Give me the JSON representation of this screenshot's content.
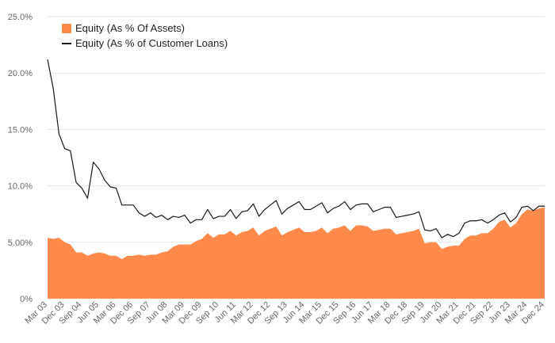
{
  "chart_data": {
    "type": "area+line",
    "title": "",
    "xlabel": "",
    "ylabel": "",
    "ylim": [
      0,
      25
    ],
    "yticks": [
      0,
      5,
      10,
      15,
      20,
      25
    ],
    "ytick_labels": [
      "0%",
      "5.00%",
      "10.0%",
      "15.0%",
      "20.0%",
      "25.0%"
    ],
    "x_tick_labels": [
      "Mar 03",
      "Dec 03",
      "Sep 04",
      "Jun 05",
      "Mar 06",
      "Dec 06",
      "Sep 07",
      "Jun 08",
      "Mar 09",
      "Dec 09",
      "Sep 10",
      "Jun 11",
      "Mar 12",
      "Dec 12",
      "Sep 13",
      "Jun 14",
      "Mar 15",
      "Dec 15",
      "Sep 16",
      "Jun 17",
      "Mar 18",
      "Dec 18",
      "Sep 19",
      "Jun 20",
      "Mar 21",
      "Dec 21",
      "Sep 22",
      "Jun 23",
      "Mar 24",
      "Dec 24"
    ],
    "grid": true,
    "legend_position": "top-left",
    "colors": {
      "area": "#FF8A4C",
      "line": "#1a1a1a"
    },
    "series": [
      {
        "name": "Equity (As % Of Assets)",
        "kind": "area",
        "values": [
          5.4,
          5.3,
          5.4,
          5.0,
          4.8,
          4.1,
          4.1,
          3.8,
          4.0,
          4.1,
          4.0,
          3.8,
          3.8,
          3.5,
          3.8,
          3.8,
          3.9,
          3.8,
          3.9,
          3.9,
          4.1,
          4.2,
          4.6,
          4.8,
          4.8,
          4.8,
          5.1,
          5.3,
          5.8,
          5.4,
          5.7,
          5.7,
          6.0,
          5.6,
          5.9,
          6.0,
          6.3,
          5.6,
          6.0,
          6.2,
          6.4,
          5.6,
          5.9,
          6.1,
          6.3,
          5.9,
          5.9,
          6.0,
          6.3,
          5.8,
          6.2,
          6.3,
          6.5,
          6.0,
          6.5,
          6.5,
          6.4,
          6.0,
          6.1,
          6.2,
          6.2,
          5.7,
          5.8,
          5.9,
          6.0,
          6.2,
          4.9,
          5.0,
          5.0,
          4.4,
          4.6,
          4.7,
          4.7,
          5.3,
          5.6,
          5.6,
          5.8,
          5.8,
          6.2,
          6.8,
          7.0,
          6.3,
          6.7,
          7.5,
          7.9,
          7.8,
          8.0,
          8.1
        ]
      },
      {
        "name": "Equity (As % of Customer Loans)",
        "kind": "line",
        "values": [
          21.2,
          18.6,
          14.6,
          13.3,
          13.1,
          10.3,
          9.8,
          8.9,
          12.1,
          11.5,
          10.5,
          9.9,
          9.8,
          8.3,
          8.3,
          8.3,
          7.6,
          7.3,
          7.6,
          7.2,
          7.4,
          7.0,
          7.3,
          7.2,
          7.4,
          6.7,
          7.0,
          7.0,
          7.9,
          7.1,
          7.3,
          7.3,
          7.9,
          7.1,
          7.7,
          7.8,
          8.4,
          7.3,
          7.9,
          8.3,
          8.7,
          7.5,
          8.0,
          8.3,
          8.6,
          7.9,
          7.9,
          8.2,
          8.5,
          7.6,
          8.0,
          8.2,
          8.6,
          7.9,
          8.3,
          8.4,
          8.4,
          7.7,
          7.9,
          8.1,
          8.1,
          7.2,
          7.3,
          7.4,
          7.5,
          7.7,
          6.1,
          6.0,
          6.2,
          5.4,
          5.7,
          5.5,
          5.8,
          6.7,
          6.9,
          6.9,
          7.0,
          6.7,
          7.0,
          7.4,
          7.6,
          6.8,
          7.2,
          8.1,
          8.2,
          7.8,
          8.2,
          8.2
        ]
      }
    ]
  }
}
